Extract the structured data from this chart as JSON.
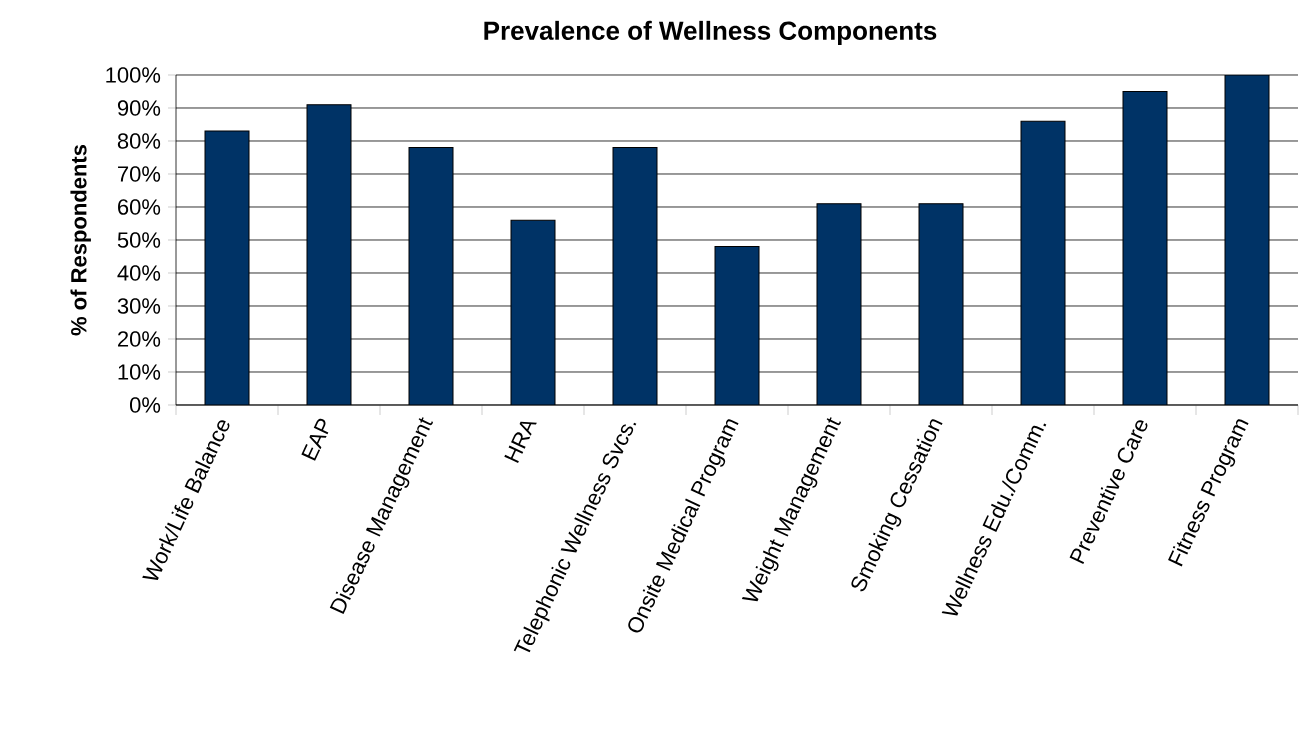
{
  "chart_data": {
    "type": "bar",
    "title": "Prevalence of Wellness Components",
    "ylabel": "% of Respondents",
    "categories": [
      "Work/Life Balance",
      "EAP",
      "Disease Management",
      "HRA",
      "Telephonic Wellness Svcs.",
      "Onsite Medical Program",
      "Weight Management",
      "Smoking Cessation",
      "Wellness Edu./Comm.",
      "Preventive Care",
      "Fitness Program"
    ],
    "values": [
      83,
      91,
      78,
      56,
      78,
      48,
      61,
      61,
      86,
      95,
      100
    ],
    "color": "#003366",
    "ylim": [
      0,
      100
    ],
    "yticks": [
      {
        "value": 0,
        "label": "0%"
      },
      {
        "value": 10,
        "label": "10%"
      },
      {
        "value": 20,
        "label": "20%"
      },
      {
        "value": 30,
        "label": "30%"
      },
      {
        "value": 40,
        "label": "40%"
      },
      {
        "value": 50,
        "label": "50%"
      },
      {
        "value": 60,
        "label": "60%"
      },
      {
        "value": 70,
        "label": "70%"
      },
      {
        "value": 80,
        "label": "80%"
      },
      {
        "value": 90,
        "label": "90%"
      },
      {
        "value": 100,
        "label": "100%"
      }
    ],
    "grid": "y"
  }
}
